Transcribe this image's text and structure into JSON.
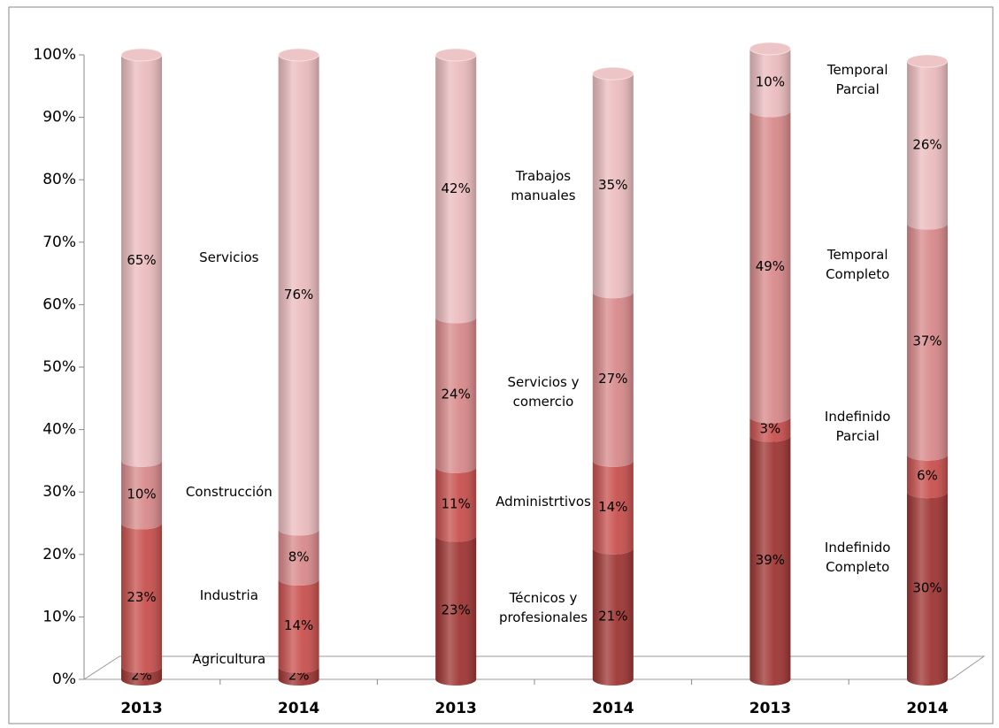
{
  "chart_data": [
    {
      "type": "bar",
      "categories": [
        "2013",
        "2014"
      ],
      "ylim": [
        0,
        100
      ],
      "yticks": [
        {
          "value": 0,
          "label": "0%"
        },
        {
          "value": 10,
          "label": "10%"
        },
        {
          "value": 20,
          "label": "20%"
        },
        {
          "value": 30,
          "label": "30%"
        },
        {
          "value": 40,
          "label": "40%"
        },
        {
          "value": 50,
          "label": "50%"
        },
        {
          "value": 60,
          "label": "60%"
        },
        {
          "value": 70,
          "label": "70%"
        },
        {
          "value": 80,
          "label": "80%"
        },
        {
          "value": 90,
          "label": "90%"
        },
        {
          "value": 100,
          "label": "100%"
        }
      ],
      "series": [
        {
          "name": "Agricultura",
          "color": "#9e3533",
          "values": [
            2,
            2
          ],
          "value_labels": [
            "2%",
            "2%"
          ]
        },
        {
          "name": "Industria",
          "color": "#c8504e",
          "values": [
            23,
            14
          ],
          "value_labels": [
            "23%",
            "14%"
          ]
        },
        {
          "name": "Construcción",
          "color": "#d8898a",
          "values": [
            10,
            8
          ],
          "value_labels": [
            "10%",
            "8%"
          ]
        },
        {
          "name": "Servicios",
          "color": "#ebbcbe",
          "values": [
            65,
            76
          ],
          "value_labels": [
            "65%",
            "76%"
          ]
        }
      ]
    },
    {
      "type": "bar",
      "categories": [
        "2013",
        "2014"
      ],
      "ylim": [
        0,
        100
      ],
      "series": [
        {
          "name": "Técnicos y profesionales",
          "color": "#9e3533",
          "values": [
            23,
            21
          ],
          "value_labels": [
            "23%",
            "21%"
          ]
        },
        {
          "name": "Administrtivos",
          "color": "#c8504e",
          "values": [
            11,
            14
          ],
          "value_labels": [
            "11%",
            "14%"
          ]
        },
        {
          "name": "Servicios y comercio",
          "color": "#d8898a",
          "values": [
            24,
            27
          ],
          "value_labels": [
            "24%",
            "27%"
          ]
        },
        {
          "name": "Trabajos manuales",
          "color": "#ebbcbe",
          "values": [
            42,
            35
          ],
          "value_labels": [
            "42%",
            "35%"
          ]
        }
      ]
    },
    {
      "type": "bar",
      "categories": [
        "2013",
        "2014"
      ],
      "ylim": [
        0,
        100
      ],
      "series": [
        {
          "name": "Indefinido Completo",
          "color": "#9e3533",
          "values": [
            39,
            30
          ],
          "value_labels": [
            "39%",
            "30%"
          ]
        },
        {
          "name": "Indefinido Parcial",
          "color": "#c8504e",
          "values": [
            3,
            6
          ],
          "value_labels": [
            "3%",
            "6%"
          ]
        },
        {
          "name": "Temporal Completo",
          "color": "#d8898a",
          "values": [
            49,
            37
          ],
          "value_labels": [
            "49%",
            "37%"
          ]
        },
        {
          "name": "Temporal Parcial",
          "color": "#ebbcbe",
          "values": [
            10,
            26
          ],
          "value_labels": [
            "10%",
            "26%"
          ]
        }
      ]
    }
  ]
}
